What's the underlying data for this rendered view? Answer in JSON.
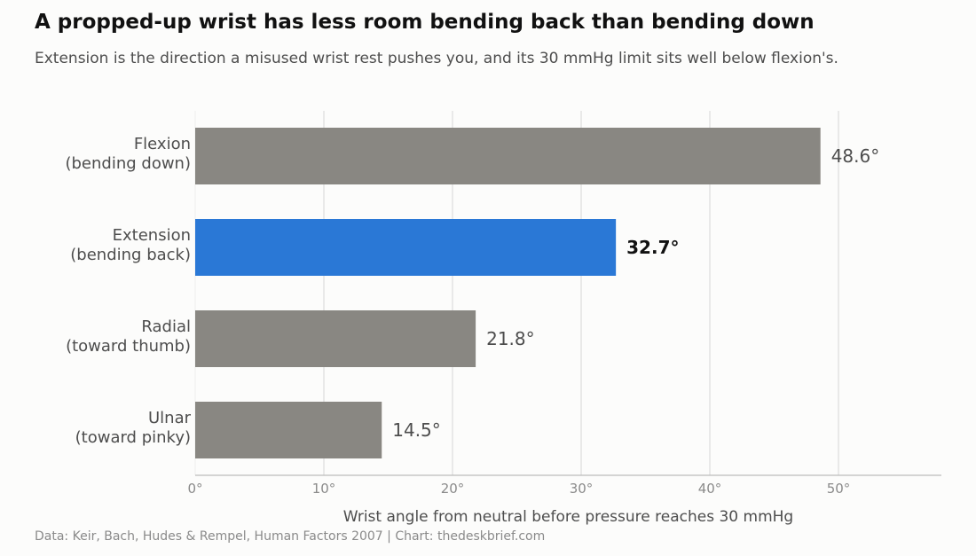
{
  "title": "A propped-up wrist has less room bending back than bending down",
  "subtitle": "Extension is the direction a misused wrist rest pushes you, and its 30 mmHg limit sits well below flexion's.",
  "footer": "Data: Keir, Bach, Hudes & Rempel, Human Factors 2007  |  Chart: thedeskbrief.com",
  "chart_data": {
    "type": "bar",
    "orientation": "horizontal",
    "categories": [
      [
        "Flexion",
        "(bending down)"
      ],
      [
        "Extension",
        "(bending back)"
      ],
      [
        "Radial",
        "(toward thumb)"
      ],
      [
        "Ulnar",
        "(toward pinky)"
      ]
    ],
    "values": [
      48.6,
      32.7,
      21.8,
      14.5
    ],
    "value_labels": [
      "48.6°",
      "32.7°",
      "21.8°",
      "14.5°"
    ],
    "highlight_index": 1,
    "xlabel": "Wrist angle from neutral before pressure reaches 30 mmHg",
    "ylabel": "",
    "xlim": [
      0,
      58
    ],
    "xticks": [
      0,
      10,
      20,
      30,
      40,
      50
    ],
    "xtick_labels": [
      "0°",
      "10°",
      "20°",
      "30°",
      "40°",
      "50°"
    ],
    "grid": "vertical",
    "colors": {
      "bar": "#898782",
      "highlight": "#2a78d6",
      "grid": "#dddddd",
      "axis": "#bbbbbb",
      "tick_text": "#8a8a8a",
      "label_text": "#4d4d4d",
      "highlight_text": "#111111"
    }
  }
}
